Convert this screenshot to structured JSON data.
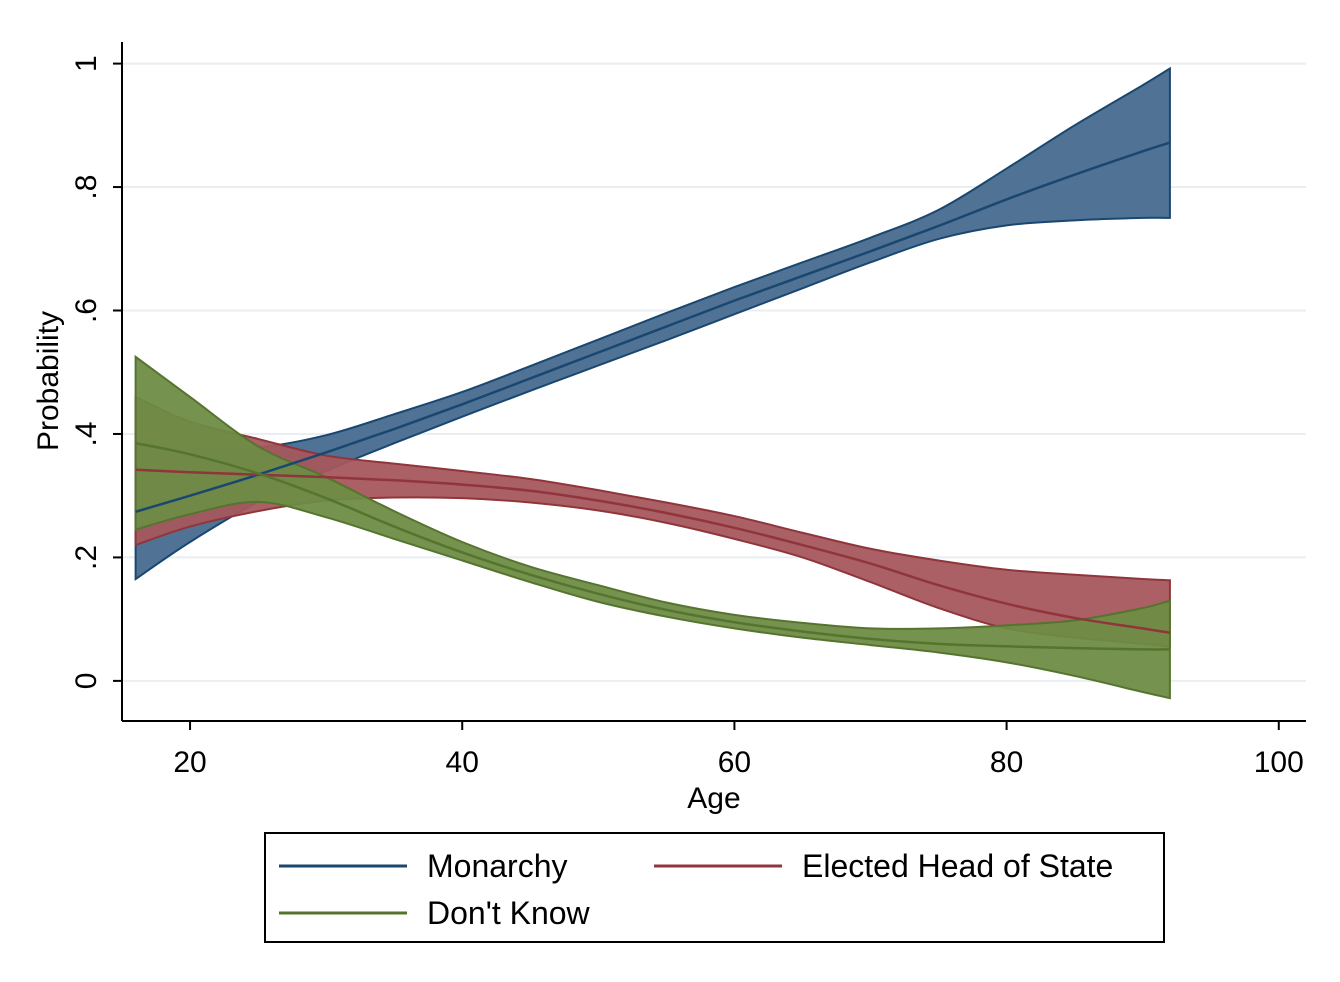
{
  "chart_data": {
    "type": "area",
    "xlabel": "Age",
    "ylabel": "Probability",
    "xlim": [
      15,
      102
    ],
    "ylim": [
      -0.065,
      1.035
    ],
    "xticks": [
      {
        "value": 20,
        "label": "20"
      },
      {
        "value": 40,
        "label": "40"
      },
      {
        "value": 60,
        "label": "60"
      },
      {
        "value": 80,
        "label": "80"
      },
      {
        "value": 100,
        "label": "100"
      }
    ],
    "yticks": [
      {
        "value": 0,
        "label": "0"
      },
      {
        "value": 0.2,
        "label": ".2"
      },
      {
        "value": 0.4,
        "label": ".4"
      },
      {
        "value": 0.6,
        "label": ".6"
      },
      {
        "value": 0.8,
        "label": ".8"
      },
      {
        "value": 1,
        "label": "1"
      }
    ],
    "grid": true,
    "legend_position": "bottom",
    "x": [
      16,
      20,
      25,
      30,
      35,
      40,
      45,
      50,
      55,
      60,
      65,
      70,
      75,
      80,
      85,
      90,
      92
    ],
    "series": [
      {
        "name": "Monarchy",
        "color": "#1a476f",
        "fill": "#476b8f",
        "estimate": [
          0.274,
          0.3,
          0.334,
          0.37,
          0.408,
          0.448,
          0.49,
          0.532,
          0.574,
          0.616,
          0.656,
          0.696,
          0.737,
          0.78,
          0.82,
          0.858,
          0.872
        ],
        "lower": [
          0.165,
          0.225,
          0.29,
          0.34,
          0.385,
          0.428,
          0.47,
          0.511,
          0.552,
          0.594,
          0.636,
          0.678,
          0.716,
          0.738,
          0.746,
          0.75,
          0.75
        ],
        "upper": [
          0.385,
          0.375,
          0.378,
          0.398,
          0.432,
          0.468,
          0.51,
          0.553,
          0.596,
          0.638,
          0.678,
          0.718,
          0.763,
          0.83,
          0.9,
          0.965,
          0.992
        ]
      },
      {
        "name": "Elected Head of State",
        "color": "#90353b",
        "fill": "#a5575d",
        "estimate": [
          0.342,
          0.338,
          0.334,
          0.33,
          0.325,
          0.318,
          0.308,
          0.292,
          0.272,
          0.248,
          0.22,
          0.19,
          0.155,
          0.125,
          0.102,
          0.085,
          0.078
        ],
        "lower": [
          0.22,
          0.25,
          0.275,
          0.292,
          0.297,
          0.296,
          0.289,
          0.276,
          0.256,
          0.23,
          0.2,
          0.16,
          0.118,
          0.085,
          0.07,
          0.06,
          0.055
        ],
        "upper": [
          0.46,
          0.42,
          0.392,
          0.365,
          0.352,
          0.34,
          0.327,
          0.309,
          0.289,
          0.267,
          0.24,
          0.214,
          0.195,
          0.18,
          0.172,
          0.165,
          0.163
        ]
      },
      {
        "name": "Don't Know",
        "color": "#55752f",
        "fill": "#6e8c45",
        "estimate": [
          0.385,
          0.367,
          0.336,
          0.296,
          0.25,
          0.208,
          0.172,
          0.141,
          0.115,
          0.095,
          0.08,
          0.068,
          0.06,
          0.056,
          0.053,
          0.051,
          0.051
        ],
        "lower": [
          0.245,
          0.27,
          0.29,
          0.265,
          0.23,
          0.195,
          0.16,
          0.128,
          0.104,
          0.085,
          0.07,
          0.058,
          0.046,
          0.03,
          0.008,
          -0.018,
          -0.028
        ],
        "upper": [
          0.525,
          0.46,
          0.38,
          0.33,
          0.275,
          0.225,
          0.185,
          0.155,
          0.127,
          0.107,
          0.094,
          0.085,
          0.085,
          0.09,
          0.098,
          0.118,
          0.13
        ]
      }
    ]
  }
}
